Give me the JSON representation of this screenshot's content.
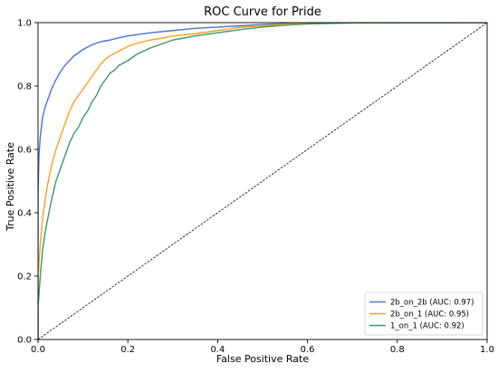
{
  "chart_data": {
    "type": "line",
    "title": "ROC Curve for Pride",
    "xlabel": "False Positive Rate",
    "ylabel": "True Positive Rate",
    "xlim": [
      0.0,
      1.0
    ],
    "ylim": [
      0.0,
      1.0
    ],
    "x_ticks": [
      "0.0",
      "0.2",
      "0.4",
      "0.6",
      "0.8",
      "1.0"
    ],
    "y_ticks": [
      "0.0",
      "0.2",
      "0.4",
      "0.6",
      "0.8",
      "1.0"
    ],
    "grid": false,
    "legend_position": "lower-right",
    "series": [
      {
        "name": "2b_on_2b (AUC: 0.97)",
        "color": "#4c72d9",
        "points": [
          [
            0.0,
            0.0
          ],
          [
            0.0,
            0.45
          ],
          [
            0.002,
            0.58
          ],
          [
            0.005,
            0.64
          ],
          [
            0.01,
            0.7
          ],
          [
            0.015,
            0.73
          ],
          [
            0.02,
            0.75
          ],
          [
            0.03,
            0.79
          ],
          [
            0.04,
            0.82
          ],
          [
            0.05,
            0.845
          ],
          [
            0.06,
            0.865
          ],
          [
            0.07,
            0.88
          ],
          [
            0.08,
            0.895
          ],
          [
            0.09,
            0.905
          ],
          [
            0.1,
            0.915
          ],
          [
            0.12,
            0.93
          ],
          [
            0.14,
            0.94
          ],
          [
            0.16,
            0.945
          ],
          [
            0.18,
            0.952
          ],
          [
            0.2,
            0.958
          ],
          [
            0.25,
            0.968
          ],
          [
            0.3,
            0.975
          ],
          [
            0.35,
            0.982
          ],
          [
            0.4,
            0.986
          ],
          [
            0.45,
            0.99
          ],
          [
            0.5,
            0.994
          ],
          [
            0.55,
            0.997
          ],
          [
            0.6,
            0.998
          ],
          [
            0.7,
            1.0
          ],
          [
            1.0,
            1.0
          ]
        ]
      },
      {
        "name": "2b_on_1 (AUC: 0.95)",
        "color": "#ff9f1c",
        "points": [
          [
            0.0,
            0.0
          ],
          [
            0.0,
            0.2
          ],
          [
            0.005,
            0.3
          ],
          [
            0.01,
            0.38
          ],
          [
            0.015,
            0.43
          ],
          [
            0.02,
            0.48
          ],
          [
            0.03,
            0.55
          ],
          [
            0.04,
            0.6
          ],
          [
            0.05,
            0.64
          ],
          [
            0.06,
            0.68
          ],
          [
            0.07,
            0.72
          ],
          [
            0.08,
            0.75
          ],
          [
            0.09,
            0.77
          ],
          [
            0.1,
            0.79
          ],
          [
            0.11,
            0.81
          ],
          [
            0.12,
            0.83
          ],
          [
            0.13,
            0.85
          ],
          [
            0.14,
            0.87
          ],
          [
            0.15,
            0.885
          ],
          [
            0.16,
            0.895
          ],
          [
            0.18,
            0.91
          ],
          [
            0.2,
            0.925
          ],
          [
            0.22,
            0.935
          ],
          [
            0.25,
            0.945
          ],
          [
            0.28,
            0.952
          ],
          [
            0.3,
            0.958
          ],
          [
            0.35,
            0.965
          ],
          [
            0.4,
            0.975
          ],
          [
            0.45,
            0.985
          ],
          [
            0.5,
            0.99
          ],
          [
            0.55,
            0.995
          ],
          [
            0.6,
            0.998
          ],
          [
            0.75,
            1.0
          ]
        ]
      },
      {
        "name": "1_on_1 (AUC: 0.92)",
        "color": "#3a9a5a",
        "points": [
          [
            0.0,
            0.0
          ],
          [
            0.0,
            0.1
          ],
          [
            0.005,
            0.2
          ],
          [
            0.01,
            0.28
          ],
          [
            0.015,
            0.33
          ],
          [
            0.02,
            0.37
          ],
          [
            0.03,
            0.44
          ],
          [
            0.04,
            0.5
          ],
          [
            0.05,
            0.54
          ],
          [
            0.06,
            0.58
          ],
          [
            0.07,
            0.62
          ],
          [
            0.08,
            0.65
          ],
          [
            0.09,
            0.67
          ],
          [
            0.1,
            0.7
          ],
          [
            0.11,
            0.72
          ],
          [
            0.12,
            0.75
          ],
          [
            0.13,
            0.77
          ],
          [
            0.14,
            0.8
          ],
          [
            0.15,
            0.82
          ],
          [
            0.16,
            0.84
          ],
          [
            0.17,
            0.85
          ],
          [
            0.18,
            0.865
          ],
          [
            0.2,
            0.88
          ],
          [
            0.22,
            0.9
          ],
          [
            0.25,
            0.92
          ],
          [
            0.28,
            0.935
          ],
          [
            0.3,
            0.945
          ],
          [
            0.35,
            0.958
          ],
          [
            0.4,
            0.968
          ],
          [
            0.45,
            0.978
          ],
          [
            0.5,
            0.986
          ],
          [
            0.55,
            0.992
          ],
          [
            0.6,
            0.996
          ],
          [
            0.7,
            0.999
          ],
          [
            1.0,
            1.0
          ]
        ]
      },
      {
        "name": "",
        "color": "#000000",
        "dashed": true,
        "points": [
          [
            0.0,
            0.0
          ],
          [
            1.0,
            1.0
          ]
        ]
      }
    ]
  }
}
